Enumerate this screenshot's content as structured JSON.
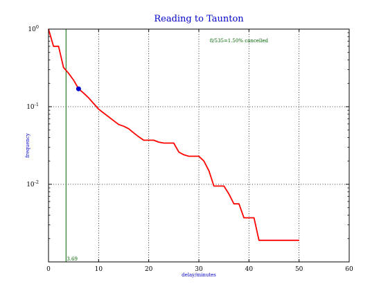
{
  "chart_data": {
    "type": "line",
    "title": "Reading to Taunton",
    "xlabel": "delay/minutes",
    "ylabel": "frequency",
    "xlim": [
      0,
      60
    ],
    "ylim": [
      0.001,
      1
    ],
    "yscale": "log",
    "grid": true,
    "x_ticks": [
      "0",
      "10",
      "20",
      "30",
      "40",
      "50",
      "60"
    ],
    "y_ticks": [
      {
        "value": 1,
        "base": "10",
        "exp": "0"
      },
      {
        "value": 0.1,
        "base": "10",
        "exp": "-1"
      },
      {
        "value": 0.01,
        "base": "10",
        "exp": "-2"
      }
    ],
    "series": [
      {
        "color": "#ff0000",
        "x": [
          0,
          1,
          2,
          3,
          4,
          5,
          6,
          7,
          8,
          9,
          10,
          11,
          12,
          13,
          14,
          15,
          16,
          17,
          18,
          19,
          20,
          21,
          22,
          23,
          24,
          25,
          26,
          27,
          28,
          29,
          30,
          31,
          32,
          33,
          34,
          35,
          36,
          37,
          38,
          39,
          40,
          41,
          42,
          43,
          44,
          45,
          46,
          47,
          48,
          49,
          50
        ],
        "y": [
          1.0,
          0.6,
          0.6,
          0.32,
          0.27,
          0.22,
          0.17,
          0.15,
          0.13,
          0.11,
          0.093,
          0.083,
          0.074,
          0.066,
          0.059,
          0.056,
          0.052,
          0.046,
          0.041,
          0.037,
          0.037,
          0.037,
          0.035,
          0.034,
          0.034,
          0.034,
          0.026,
          0.024,
          0.023,
          0.023,
          0.023,
          0.02,
          0.015,
          0.0095,
          0.0095,
          0.0095,
          0.0075,
          0.0056,
          0.0056,
          0.0037,
          0.0037,
          0.0037,
          0.0019,
          0.0019,
          0.0019,
          0.0019,
          0.0019,
          0.0019,
          0.0019,
          0.0019,
          0.0019
        ]
      }
    ],
    "marker": {
      "x": 6,
      "y": 0.17,
      "color": "#0000cc"
    },
    "vline": {
      "x": 3.5,
      "label": "3.69",
      "color": "#006400"
    },
    "annotation": {
      "text": "8/535=1.50% cancelled",
      "x": 38,
      "y": 0.68,
      "color": "#006400"
    }
  }
}
